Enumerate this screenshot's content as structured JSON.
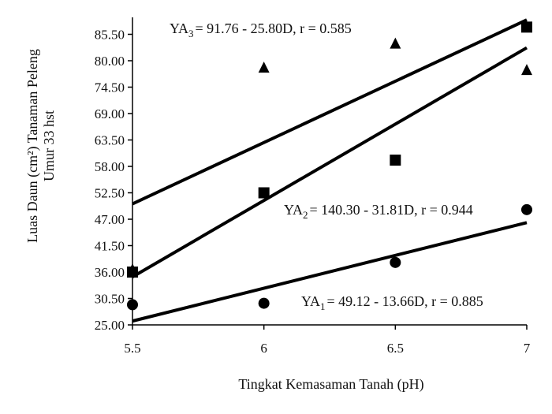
{
  "chart_data": {
    "type": "scatter",
    "title": "",
    "xlabel": "Tingkat Kemasaman Tanah (pH)",
    "ylabel": [
      "Luas Daun (cm²) Tanaman Peleng",
      "Umur 33 hst"
    ],
    "xlim": [
      5.5,
      7.0
    ],
    "ylim": [
      25.0,
      88.5
    ],
    "x_ticks": [
      "5.5",
      "6",
      "6.5",
      "7"
    ],
    "y_ticks": [
      "25.00",
      "30.50",
      "36.00",
      "41.50",
      "47.00",
      "52.50",
      "58.00",
      "63.50",
      "69.00",
      "74.50",
      "80.00",
      "85.50"
    ],
    "grid": false,
    "series": [
      {
        "marker": "circle",
        "points": [
          [
            5.5,
            29.2
          ],
          [
            6.0,
            29.5
          ],
          [
            6.5,
            38.0
          ],
          [
            7.0,
            49.0
          ]
        ],
        "fit": [
          [
            5.5,
            25.8
          ],
          [
            7.0,
            46.3
          ]
        ],
        "equation": {
          "lhs": "YA",
          "sub": "1",
          "rhs": "= 49.12 - 13.66D, r = 0.885"
        }
      },
      {
        "marker": "square",
        "points": [
          [
            5.5,
            36.0
          ],
          [
            6.0,
            52.5
          ],
          [
            6.5,
            59.3
          ],
          [
            7.0,
            87.0
          ]
        ],
        "fit": [
          [
            5.5,
            35.0
          ],
          [
            7.0,
            82.7
          ]
        ],
        "equation": {
          "lhs": "YA",
          "sub": "2",
          "rhs": "= 140.30 - 31.81D, r = 0.944"
        }
      },
      {
        "marker": "triangle",
        "points": [
          [
            5.5,
            36.5
          ],
          [
            6.0,
            78.5
          ],
          [
            6.5,
            83.5
          ],
          [
            7.0,
            78.0
          ]
        ],
        "fit": [
          [
            5.5,
            50.2
          ],
          [
            7.0,
            88.5
          ]
        ],
        "equation": {
          "lhs": "YA",
          "sub": "3",
          "rhs": "= 91.76 - 25.80D, r = 0.585"
        }
      }
    ]
  }
}
